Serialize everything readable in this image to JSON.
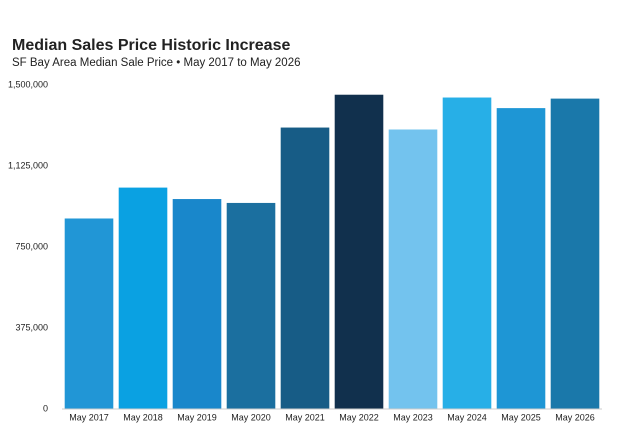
{
  "chart_data": {
    "type": "bar",
    "title": "Median Sales Price Historic Increase",
    "subtitle": "SF Bay Area Median Sale Price • May 2017 to May 2026",
    "categories": [
      "May 2017",
      "May 2018",
      "May 2019",
      "May 2020",
      "May 2021",
      "May 2022",
      "May 2023",
      "May 2024",
      "May 2025",
      "May 2026"
    ],
    "values": [
      882000,
      1025000,
      972000,
      954000,
      1303000,
      1455000,
      1294000,
      1442000,
      1393000,
      1437000
    ],
    "colors": [
      "#2196d6",
      "#0aa1e2",
      "#1987cb",
      "#1b6f9f",
      "#175c86",
      "#11304d",
      "#73c3ee",
      "#27afe7",
      "#1e96d5",
      "#1a78aa"
    ],
    "ylim": [
      0,
      1500000
    ],
    "yticks": [
      0,
      {
        "value": 375000,
        "label": "375,000"
      },
      {
        "value": 750000,
        "label": "750,000"
      },
      {
        "value": 1125000,
        "label": "1,125,000"
      },
      {
        "value": 1500000,
        "label": "1,500,000"
      }
    ],
    "grid": false
  }
}
